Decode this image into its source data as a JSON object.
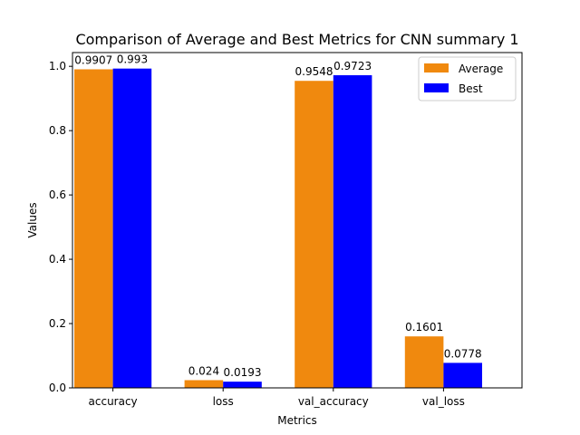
{
  "chart_data": {
    "type": "bar",
    "title": "Comparison of Average and Best Metrics for CNN summary 1",
    "xlabel": "Metrics",
    "ylabel": "Values",
    "categories": [
      "accuracy",
      "loss",
      "val_accuracy",
      "val_loss"
    ],
    "series": [
      {
        "name": "Average",
        "color": "#F0890E",
        "values": [
          0.9907,
          0.024,
          0.9548,
          0.1601
        ],
        "labels": [
          "0.9907",
          "0.024",
          "0.9548",
          "0.1601"
        ]
      },
      {
        "name": "Best",
        "color": "#0000FF",
        "values": [
          0.993,
          0.0193,
          0.9723,
          0.0778
        ],
        "labels": [
          "0.993",
          "0.0193",
          "0.9723",
          "0.0778"
        ]
      }
    ],
    "ylim": [
      0,
      1.0428
    ],
    "yticks": [
      0.0,
      0.2,
      0.4,
      0.6,
      0.8,
      1.0
    ],
    "ytick_labels": [
      "0.0",
      "0.2",
      "0.4",
      "0.6",
      "0.8",
      "1.0"
    ],
    "grid": false,
    "legend_position": "top-right"
  }
}
